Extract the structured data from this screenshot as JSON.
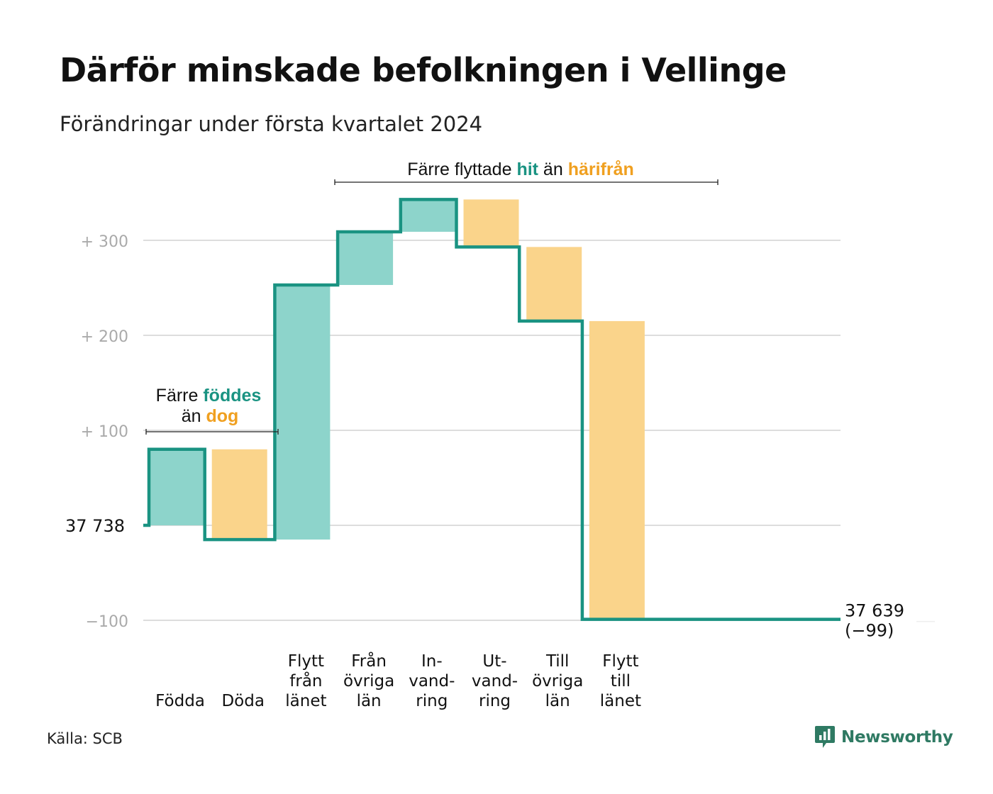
{
  "title": "Därför minskade befolkningen i Vellinge",
  "subtitle": "Förändringar under första kvartalet 2024",
  "source": "Källa: SCB",
  "brand": {
    "name": "Newsworthy",
    "icon": "newsworthy-logo-icon"
  },
  "colors": {
    "increase": "#8dd4cb",
    "decrease": "#fad48b",
    "line": "#1a9382",
    "grid": "#dddddd",
    "tick": "#aaaaaa",
    "accent_teal": "#1a9382",
    "accent_orange": "#f0a020"
  },
  "chart_data": {
    "type": "waterfall",
    "title": "Därför minskade befolkningen i Vellinge",
    "subtitle": "Förändringar under första kvartalet 2024",
    "start": {
      "label": "37 738",
      "value": 0
    },
    "end": {
      "label": "37 639",
      "change_label": "(−99)",
      "value": -99
    },
    "y_ticks": [
      {
        "value": 300,
        "label": "+  300"
      },
      {
        "value": 200,
        "label": "+  200"
      },
      {
        "value": 100,
        "label": "+  100"
      },
      {
        "value": 0,
        "label": "37  738"
      },
      {
        "value": -100,
        "label": "−100"
      }
    ],
    "ylim": [
      -110,
      350
    ],
    "grid": true,
    "steps": [
      {
        "label_lines": [
          "Födda"
        ],
        "from": 0,
        "to": 80,
        "kind": "increase"
      },
      {
        "label_lines": [
          "Döda"
        ],
        "from": 80,
        "to": -15,
        "kind": "decrease"
      },
      {
        "label_lines": [
          "Flytt",
          "från",
          "länet"
        ],
        "from": -15,
        "to": 253,
        "kind": "increase"
      },
      {
        "label_lines": [
          "Från",
          "övriga",
          "län"
        ],
        "from": 253,
        "to": 309,
        "kind": "increase"
      },
      {
        "label_lines": [
          "In-",
          "vand-",
          "ring"
        ],
        "from": 309,
        "to": 343,
        "kind": "increase"
      },
      {
        "label_lines": [
          "Ut-",
          "vand-",
          "ring"
        ],
        "from": 343,
        "to": 293,
        "kind": "decrease"
      },
      {
        "label_lines": [
          "Till",
          "övriga",
          "län"
        ],
        "from": 293,
        "to": 215,
        "kind": "decrease"
      },
      {
        "label_lines": [
          "Flytt",
          "till",
          "länet"
        ],
        "from": 215,
        "to": -99,
        "kind": "decrease"
      }
    ],
    "annotations": [
      {
        "lines": [
          [
            "Färre ",
            "föddes"
          ],
          [
            "än ",
            "dog"
          ]
        ]
      },
      {
        "lines": [
          [
            "Färre flyttade ",
            "hit",
            " än ",
            "härifrån"
          ]
        ]
      }
    ]
  }
}
